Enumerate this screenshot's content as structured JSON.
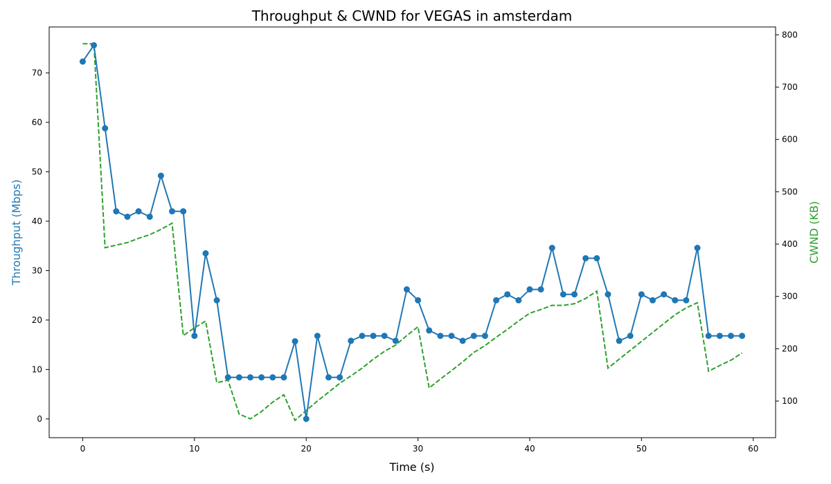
{
  "chart_data": {
    "type": "line",
    "title": "Throughput & CWND for VEGAS in amsterdam",
    "xlabel": "Time (s)",
    "ylabel_left": "Throughput (Mbps)",
    "ylabel_right": "CWND (KB)",
    "xlim": [
      -3,
      62
    ],
    "ylim_left": [
      -3.8,
      79.3
    ],
    "ylim_right": [
      30,
      815
    ],
    "x_ticks": [
      0,
      10,
      20,
      30,
      40,
      50,
      60
    ],
    "y_left_ticks": [
      0,
      10,
      20,
      30,
      40,
      50,
      60,
      70
    ],
    "y_right_ticks": [
      100,
      200,
      300,
      400,
      500,
      600,
      700,
      800
    ],
    "grid": false,
    "colors": {
      "throughput": "#1f77b4",
      "cwnd": "#2ca02c"
    },
    "series": [
      {
        "axis": "left",
        "style": "solid-markers",
        "x": [
          0,
          1,
          2,
          3,
          4,
          5,
          6,
          7,
          8,
          9,
          10,
          11,
          12,
          13,
          14,
          15,
          16,
          17,
          18,
          19,
          20,
          21,
          22,
          23,
          24,
          25,
          26,
          27,
          28,
          29,
          30,
          31,
          32,
          33,
          34,
          35,
          36,
          37,
          38,
          39,
          40,
          41,
          42,
          43,
          44,
          45,
          46,
          47,
          48,
          49,
          50,
          51,
          52,
          53,
          54,
          55,
          56,
          57,
          58,
          59
        ],
        "values": [
          72.3,
          75.6,
          58.8,
          42.0,
          40.9,
          42.0,
          40.9,
          49.2,
          42.0,
          42.0,
          16.8,
          33.5,
          24.0,
          8.4,
          8.4,
          8.4,
          8.4,
          8.4,
          8.4,
          15.7,
          0.0,
          16.8,
          8.4,
          8.4,
          15.8,
          16.8,
          16.8,
          16.8,
          15.8,
          26.2,
          24.0,
          17.9,
          16.8,
          16.8,
          15.8,
          16.8,
          16.8,
          24.0,
          25.2,
          24.0,
          26.2,
          26.2,
          34.6,
          25.2,
          25.2,
          32.5,
          32.5,
          25.2,
          15.8,
          16.8,
          25.2,
          24.0,
          25.2,
          24.0,
          24.0,
          34.6,
          16.8,
          16.8,
          16.8,
          16.8
        ]
      },
      {
        "axis": "right",
        "style": "dashed",
        "x": [
          0,
          1,
          2,
          3,
          4,
          5,
          6,
          7,
          8,
          9,
          10,
          11,
          12,
          13,
          14,
          15,
          16,
          17,
          18,
          19,
          20,
          21,
          22,
          23,
          24,
          25,
          26,
          27,
          28,
          29,
          30,
          31,
          32,
          33,
          34,
          35,
          36,
          37,
          38,
          39,
          40,
          41,
          42,
          43,
          44,
          45,
          46,
          47,
          48,
          49,
          50,
          51,
          52,
          53,
          54,
          55,
          56,
          57,
          58,
          59
        ],
        "values": [
          783,
          783,
          393,
          398,
          403,
          411,
          418,
          428,
          440,
          225,
          240,
          253,
          135,
          140,
          75,
          66,
          80,
          98,
          112,
          63,
          82,
          100,
          117,
          134,
          148,
          163,
          180,
          195,
          207,
          225,
          242,
          125,
          142,
          158,
          175,
          193,
          206,
          222,
          237,
          253,
          268,
          275,
          283,
          283,
          286,
          296,
          310,
          163,
          180,
          197,
          214,
          231,
          248,
          265,
          278,
          288,
          157,
          168,
          178,
          192
        ]
      }
    ]
  }
}
